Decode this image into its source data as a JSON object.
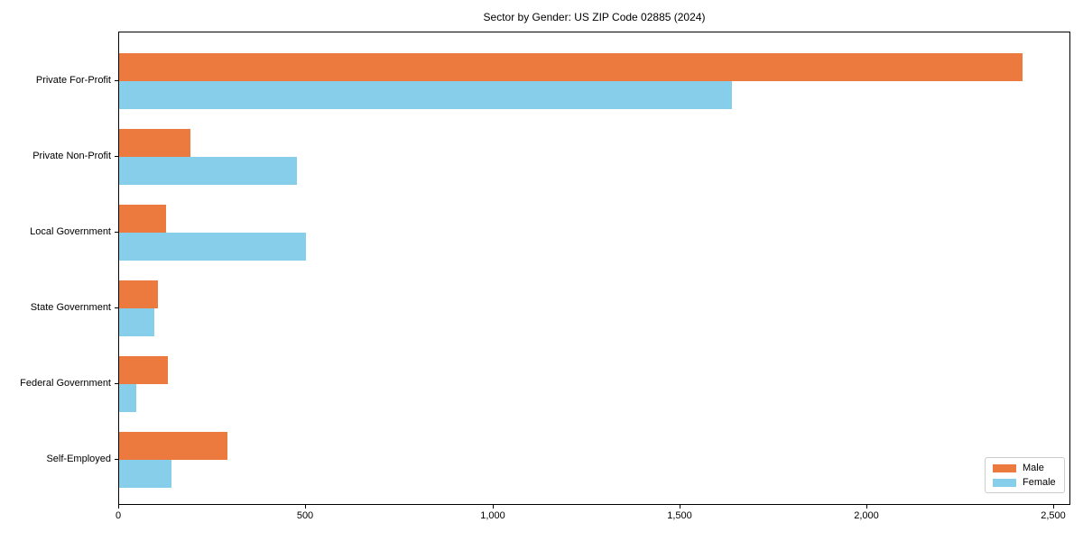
{
  "chart_data": {
    "type": "bar",
    "orientation": "horizontal",
    "title": "Sector by Gender: US ZIP Code 02885 (2024)",
    "categories": [
      "Private For-Profit",
      "Private Non-Profit",
      "Local Government",
      "State Government",
      "Federal Government",
      "Self-Employed"
    ],
    "series": [
      {
        "name": "Male",
        "color": "#ec7a3e",
        "values": [
          2420,
          190,
          125,
          105,
          130,
          290
        ]
      },
      {
        "name": "Female",
        "color": "#87ceeb",
        "values": [
          1640,
          475,
          500,
          95,
          45,
          140
        ]
      }
    ],
    "xlabel": "",
    "ylabel": "",
    "xlim": [
      0,
      2545
    ],
    "xticks": [
      0,
      500,
      1000,
      1500,
      2000,
      2500
    ],
    "xtick_labels": [
      "0",
      "500",
      "1,000",
      "1,500",
      "2,000",
      "2,500"
    ],
    "legend_position": "lower right",
    "grid": false,
    "background_color": "#ffffff",
    "spine_color": "#000000"
  }
}
